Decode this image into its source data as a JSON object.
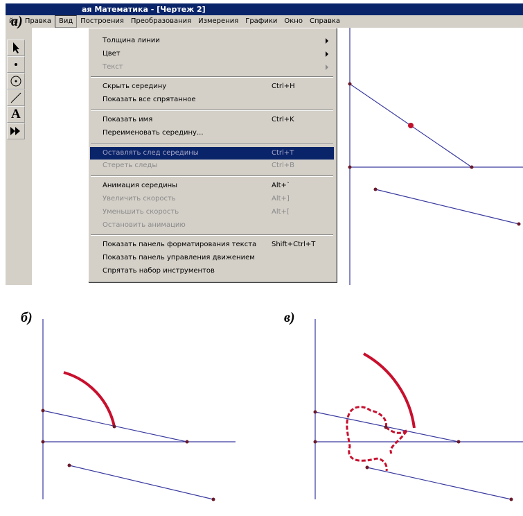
{
  "figure_labels": {
    "a": "а)",
    "b": "б)",
    "c": "в)"
  },
  "window": {
    "title": "ая Математика - [Чертеж 2]",
    "menu_bar": [
      "йл",
      "Правка",
      "Вид",
      "Построения",
      "Преобразования",
      "Измерения",
      "Графики",
      "Окно",
      "Справка"
    ],
    "toolbar_text_icon": "A",
    "dropdown": [
      [
        {
          "label": "Толщина линии",
          "submenu": true
        },
        {
          "label": "Цвет",
          "submenu": true
        },
        {
          "label": "Текст",
          "submenu": true,
          "disabled": true
        }
      ],
      [
        {
          "label": "Скрыть середину",
          "shortcut": "Ctrl+H"
        },
        {
          "label": "Показать все спрятанное"
        }
      ],
      [
        {
          "label": "Показать имя",
          "shortcut": "Ctrl+K"
        },
        {
          "label": "Переименовать середину..."
        }
      ],
      [
        {
          "label": "Оставлять след середины",
          "shortcut": "Ctrl+T",
          "highlighted": true
        },
        {
          "label": "Стереть следы",
          "shortcut": "Ctrl+B",
          "disabled": true
        }
      ],
      [
        {
          "label": "Анимация середины",
          "shortcut": "Alt+`"
        },
        {
          "label": "Увеличить скорость",
          "shortcut": "Alt+]",
          "disabled": true
        },
        {
          "label": "Уменьшить скорость",
          "shortcut": "Alt+[",
          "disabled": true
        },
        {
          "label": "Остановить анимацию",
          "disabled": true
        }
      ],
      [
        {
          "label": "Показать панель форматирования текста",
          "shortcut": "Shift+Ctrl+T"
        },
        {
          "label": "Показать панель управления движением"
        },
        {
          "label": "Спрятать набор инструментов"
        }
      ]
    ]
  }
}
